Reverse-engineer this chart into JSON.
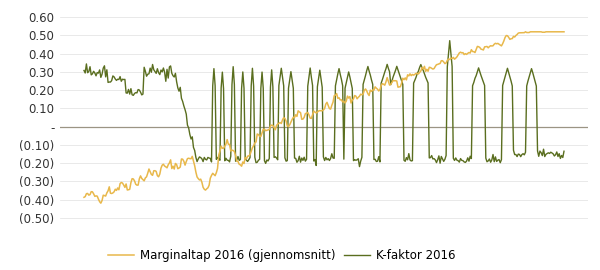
{
  "ylim": [
    -0.52,
    0.65
  ],
  "yticks": [
    0.6,
    0.5,
    0.4,
    0.3,
    0.2,
    0.1,
    0.0,
    -0.1,
    -0.2,
    -0.3,
    -0.4,
    -0.5
  ],
  "line1_color": "#E8B84B",
  "line2_color": "#5A6E1F",
  "line1_label": "Marginaltap 2016 (gjennomsnitt)",
  "line2_label": "K-faktor 2016",
  "background_color": "#ffffff",
  "zero_line_color": "#9b9484",
  "legend_fontsize": 8.5,
  "tick_fontsize": 8.5
}
